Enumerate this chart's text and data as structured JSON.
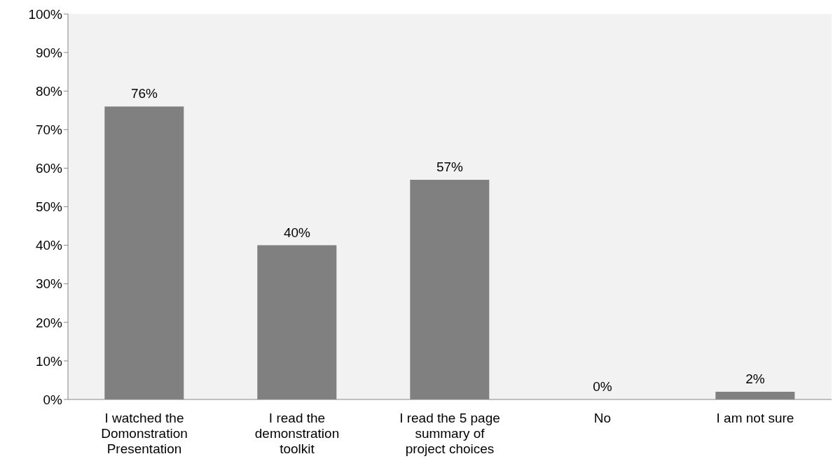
{
  "chart_data": {
    "type": "bar",
    "categories": [
      "I watched the Domonstration Presentation",
      "I read the demonstration toolkit",
      "I read the 5 page summary of project choices",
      "No",
      "I am not sure"
    ],
    "values": [
      76,
      40,
      57,
      0,
      2
    ],
    "color": "#808080",
    "value_labels": [
      "76%",
      "40%",
      "57%",
      "0%",
      "2%"
    ],
    "ylim": [
      0,
      100
    ],
    "yticks": [
      {
        "value": 0,
        "label": "0%"
      },
      {
        "value": 10,
        "label": "10%"
      },
      {
        "value": 20,
        "label": "20%"
      },
      {
        "value": 30,
        "label": "30%"
      },
      {
        "value": 40,
        "label": "40%"
      },
      {
        "value": 50,
        "label": "50%"
      },
      {
        "value": 60,
        "label": "60%"
      },
      {
        "value": 70,
        "label": "70%"
      },
      {
        "value": 80,
        "label": "80%"
      },
      {
        "value": 90,
        "label": "90%"
      },
      {
        "value": 100,
        "label": "100%"
      }
    ],
    "grid": false
  }
}
